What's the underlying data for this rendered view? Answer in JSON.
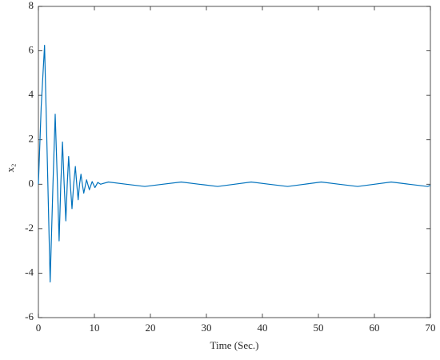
{
  "chart_data": {
    "type": "line",
    "xlabel": "Time (Sec.)",
    "ylabel": "x₂",
    "x": [
      0,
      0.5,
      1.1,
      1.6,
      2.1,
      2.6,
      3.0,
      3.4,
      3.7,
      4.0,
      4.3,
      4.6,
      4.9,
      5.15,
      5.4,
      5.7,
      6.0,
      6.3,
      6.6,
      6.85,
      7.1,
      7.35,
      7.6,
      7.85,
      8.1,
      8.6,
      9.1,
      9.6,
      10.1,
      10.6,
      11.1,
      12.5,
      15.7,
      19,
      22.2,
      25.5,
      28.7,
      32,
      35,
      38,
      41.2,
      44.5,
      47.5,
      50.5,
      53.7,
      57,
      60,
      63,
      66.2,
      69.5,
      70
    ],
    "values": [
      0,
      3.5,
      6.25,
      1,
      -4.4,
      0,
      3.15,
      0,
      -2.55,
      0,
      1.9,
      0,
      -1.65,
      0,
      1.25,
      0,
      -1.1,
      0,
      0.8,
      0,
      -0.7,
      0,
      0.45,
      0,
      -0.4,
      0.2,
      -0.25,
      0.12,
      -0.15,
      0.08,
      0,
      0.1,
      0,
      -0.1,
      0,
      0.1,
      0,
      -0.1,
      0,
      0.1,
      0,
      -0.1,
      0,
      0.1,
      0,
      -0.1,
      0,
      0.1,
      0,
      -0.1,
      -0.05
    ],
    "color": "#0072bd",
    "xlim": [
      0,
      70
    ],
    "xticks": [
      0,
      10,
      20,
      30,
      40,
      50,
      60,
      70
    ],
    "ylim": [
      -6,
      8
    ],
    "yticks": [
      -6,
      -4,
      -2,
      0,
      2,
      4,
      6,
      8
    ],
    "grid": false
  }
}
